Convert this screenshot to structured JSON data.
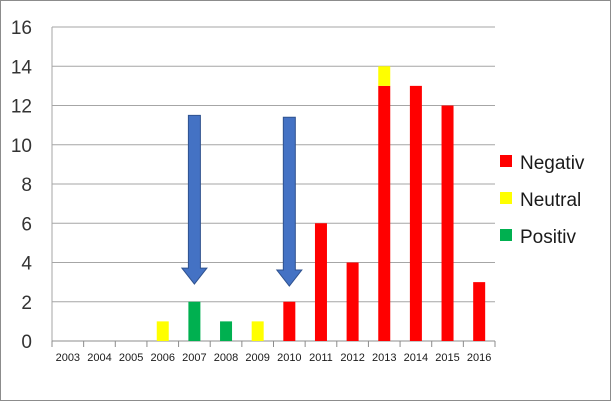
{
  "chart_data": {
    "type": "bar",
    "stacked": true,
    "title": "",
    "xlabel": "",
    "ylabel": "",
    "ylim": [
      0,
      16
    ],
    "yticks": [
      0,
      2,
      4,
      6,
      8,
      10,
      12,
      14,
      16
    ],
    "grid": true,
    "legend_position": "right",
    "categories": [
      "2003",
      "2004",
      "2005",
      "2006",
      "2007",
      "2008",
      "2009",
      "2010",
      "2011",
      "2012",
      "2013",
      "2014",
      "2015",
      "2016"
    ],
    "series": [
      {
        "name": "Negativ",
        "color": "#ff0000",
        "values": [
          0,
          0,
          0,
          0,
          0,
          0,
          0,
          2,
          6,
          4,
          13,
          13,
          12,
          3
        ]
      },
      {
        "name": "Neutral",
        "color": "#ffff00",
        "values": [
          0,
          0,
          0,
          1,
          0,
          0,
          1,
          0,
          0,
          0,
          1,
          0,
          0,
          0
        ]
      },
      {
        "name": "Positiv",
        "color": "#00b050",
        "values": [
          0,
          0,
          0,
          0,
          2,
          1,
          0,
          0,
          0,
          0,
          0,
          0,
          0,
          0
        ]
      }
    ],
    "legend": [
      "Negativ",
      "Neutral",
      "Positiv"
    ],
    "annotations": [
      {
        "type": "down-arrow",
        "category": "2007",
        "from_y": 11.5,
        "to_y": 2.9,
        "color": "#4472c4"
      },
      {
        "type": "down-arrow",
        "category": "2010",
        "from_y": 11.4,
        "to_y": 2.8,
        "color": "#4472c4"
      }
    ]
  }
}
